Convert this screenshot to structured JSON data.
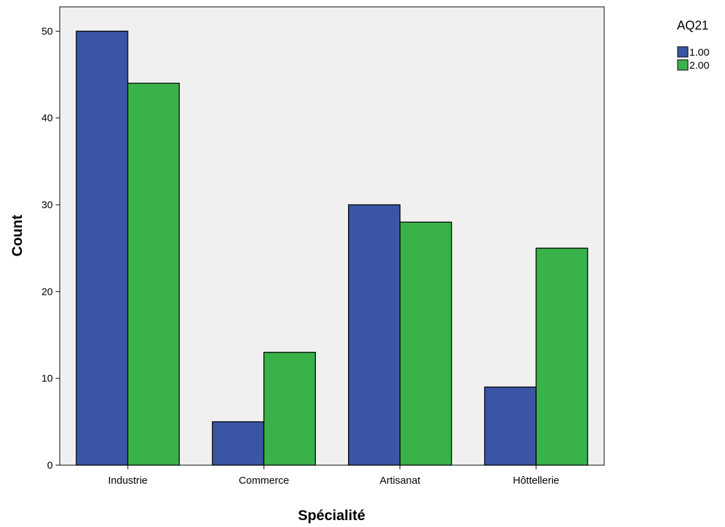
{
  "chart_data": {
    "type": "bar",
    "categories": [
      "Industrie",
      "Commerce",
      "Artisanat",
      "Hôttellerie"
    ],
    "series": [
      {
        "name": "1.00",
        "values": [
          50,
          5,
          30,
          9
        ],
        "color": "#3a55a4"
      },
      {
        "name": "2.00",
        "values": [
          44,
          13,
          28,
          25
        ],
        "color": "#39b24a"
      }
    ],
    "xlabel": "Spécialité",
    "ylabel": "Count",
    "ylim": [
      0,
      52.8
    ],
    "yticks": [
      0,
      10,
      20,
      30,
      40,
      50
    ],
    "grid": false,
    "legend": {
      "title": "AQ21",
      "placement": "top-right"
    },
    "plot_background": "#f0f0f0"
  }
}
